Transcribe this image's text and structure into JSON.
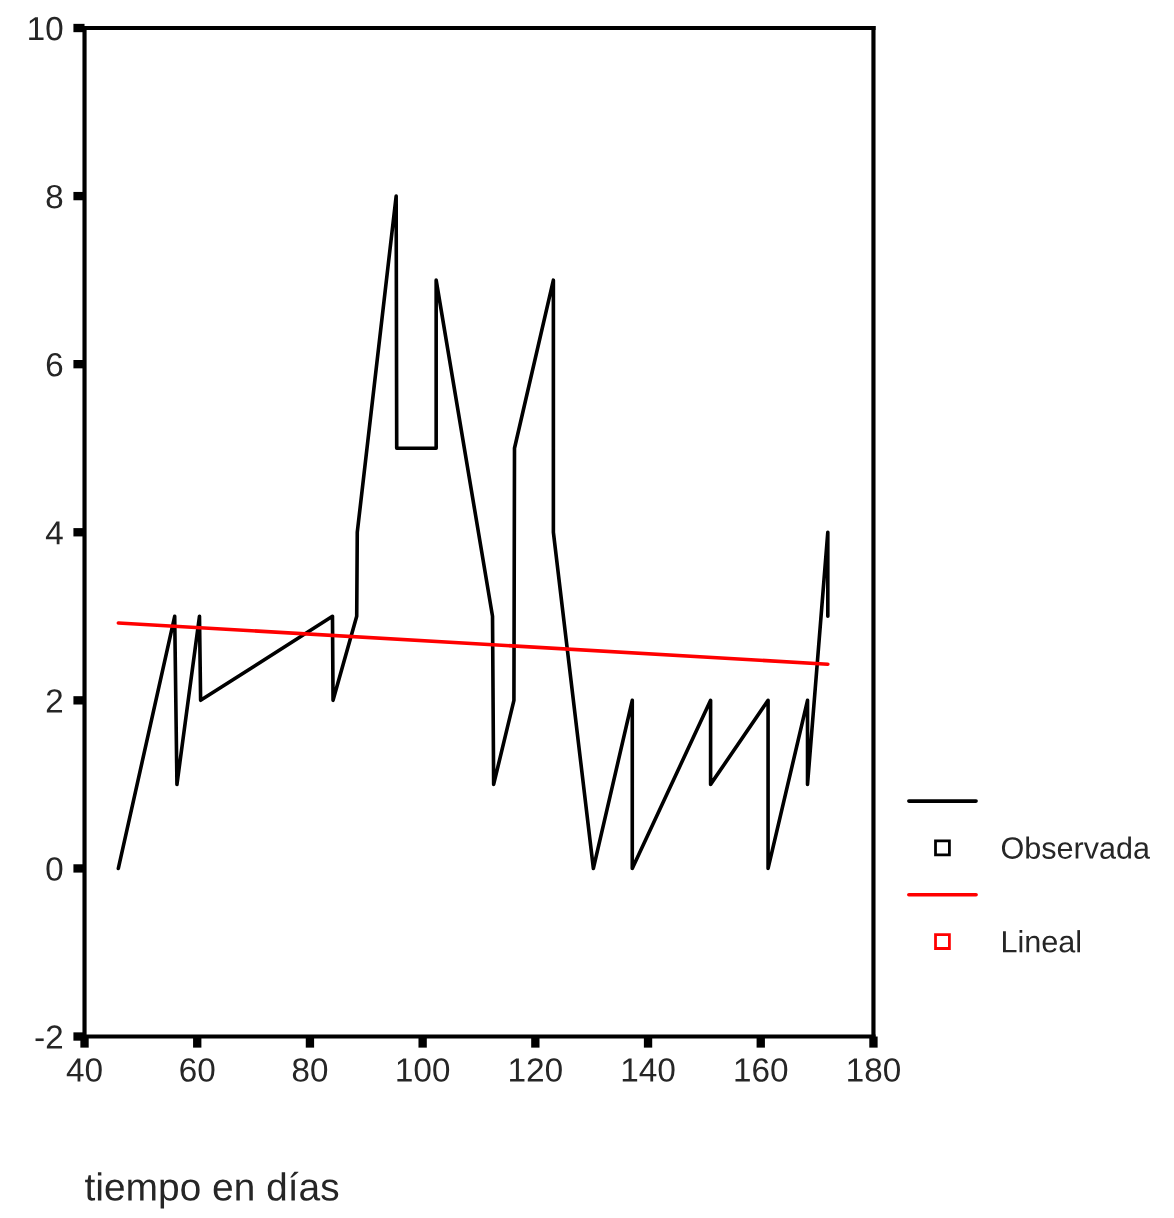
{
  "chart_data": {
    "type": "line",
    "xlabel": "tiempo en días",
    "xlim": [
      40,
      180
    ],
    "xticks": [
      40,
      60,
      80,
      100,
      120,
      140,
      160,
      180
    ],
    "ylim": [
      -2,
      10
    ],
    "yticks": [
      -2,
      0,
      2,
      4,
      6,
      8,
      10
    ],
    "series": [
      {
        "name": "Observada",
        "color": "#000000",
        "x": [
          46,
          56,
          56.4,
          60.4,
          60.6,
          84,
          84.1,
          88.3,
          88.4,
          95.3,
          95.4,
          102.4,
          102.4,
          112.4,
          112.6,
          116.2,
          116.3,
          123.2,
          123.2,
          130.3,
          137.2,
          137.2,
          151.1,
          151.1,
          161.3,
          161.3,
          168.3,
          168.3,
          171.9,
          171.9
        ],
        "values": [
          0,
          3,
          1,
          3,
          2,
          3,
          2,
          3,
          4,
          8,
          5,
          5,
          7,
          3,
          1,
          2,
          5,
          7,
          4,
          0,
          2,
          0,
          2,
          1,
          2,
          0,
          2,
          1,
          4,
          3
        ]
      },
      {
        "name": "Lineal",
        "color": "#ff0000",
        "x": [
          46,
          171.9
        ],
        "values": [
          2.92,
          2.43
        ]
      }
    ],
    "grid": false,
    "legend": "right",
    "marker": "none",
    "line_style": "solid"
  }
}
